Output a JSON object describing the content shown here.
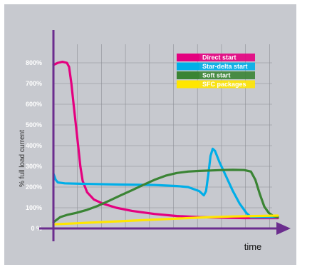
{
  "chart_data": {
    "type": "line",
    "title": "",
    "xlabel": "time",
    "ylabel": "% full load current",
    "xlim": [
      0,
      100
    ],
    "ylim": [
      0,
      900
    ],
    "yticks": [
      {
        "value": 0,
        "label": "0 %"
      },
      {
        "value": 100,
        "label": "100%"
      },
      {
        "value": 200,
        "label": "200%"
      },
      {
        "value": 300,
        "label": "300%"
      },
      {
        "value": 400,
        "label": "400%"
      },
      {
        "value": 500,
        "label": "500%"
      },
      {
        "value": 600,
        "label": "600%"
      },
      {
        "value": 700,
        "label": "700%"
      },
      {
        "value": 800,
        "label": "800%"
      }
    ],
    "grid": true,
    "legend_position": "top-right",
    "series": [
      {
        "name": "Direct start",
        "color": "#e4007f",
        "points": [
          [
            0,
            790
          ],
          [
            2,
            800
          ],
          [
            4,
            805
          ],
          [
            6,
            800
          ],
          [
            7,
            780
          ],
          [
            8,
            700
          ],
          [
            9,
            600
          ],
          [
            10,
            500
          ],
          [
            11,
            400
          ],
          [
            12,
            300
          ],
          [
            13,
            230
          ],
          [
            15,
            175
          ],
          [
            18,
            140
          ],
          [
            22,
            120
          ],
          [
            28,
            100
          ],
          [
            35,
            85
          ],
          [
            45,
            70
          ],
          [
            55,
            60
          ],
          [
            65,
            55
          ],
          [
            75,
            52
          ],
          [
            85,
            50
          ],
          [
            95,
            50
          ],
          [
            100,
            50
          ]
        ]
      },
      {
        "name": "Star-delta start",
        "color": "#00aee8",
        "points": [
          [
            0,
            265
          ],
          [
            1,
            235
          ],
          [
            2,
            222
          ],
          [
            5,
            218
          ],
          [
            15,
            215
          ],
          [
            30,
            212
          ],
          [
            45,
            210
          ],
          [
            55,
            205
          ],
          [
            60,
            200
          ],
          [
            65,
            180
          ],
          [
            67,
            160
          ],
          [
            68,
            180
          ],
          [
            69,
            260
          ],
          [
            70,
            350
          ],
          [
            71,
            385
          ],
          [
            72,
            375
          ],
          [
            74,
            320
          ],
          [
            77,
            250
          ],
          [
            80,
            180
          ],
          [
            83,
            120
          ],
          [
            86,
            75
          ],
          [
            88,
            55
          ],
          [
            100,
            55
          ]
        ]
      },
      {
        "name": "Soft start",
        "color": "#3a8434",
        "points": [
          [
            0,
            30
          ],
          [
            3,
            55
          ],
          [
            6,
            65
          ],
          [
            10,
            75
          ],
          [
            15,
            90
          ],
          [
            20,
            110
          ],
          [
            25,
            135
          ],
          [
            30,
            160
          ],
          [
            35,
            185
          ],
          [
            40,
            210
          ],
          [
            45,
            235
          ],
          [
            50,
            255
          ],
          [
            55,
            268
          ],
          [
            60,
            275
          ],
          [
            65,
            278
          ],
          [
            70,
            280
          ],
          [
            75,
            282
          ],
          [
            80,
            283
          ],
          [
            85,
            282
          ],
          [
            88,
            275
          ],
          [
            90,
            235
          ],
          [
            92,
            165
          ],
          [
            94,
            105
          ],
          [
            96,
            75
          ],
          [
            98,
            60
          ],
          [
            100,
            55
          ]
        ]
      },
      {
        "name": "SFC packages",
        "color": "#ffe600",
        "points": [
          [
            0,
            20
          ],
          [
            10,
            25
          ],
          [
            20,
            30
          ],
          [
            30,
            35
          ],
          [
            40,
            40
          ],
          [
            50,
            45
          ],
          [
            60,
            50
          ],
          [
            70,
            55
          ],
          [
            80,
            58
          ],
          [
            90,
            60
          ],
          [
            100,
            62
          ]
        ]
      }
    ]
  }
}
